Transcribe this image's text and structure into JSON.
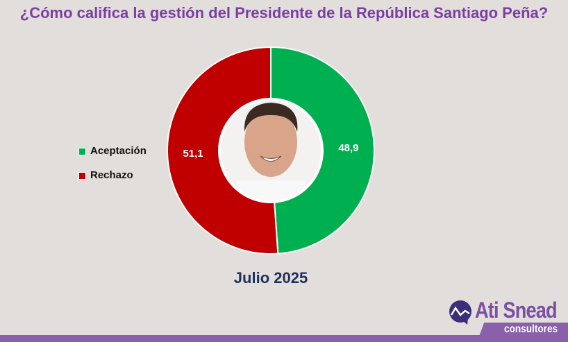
{
  "title": "¿Cómo califica la gestión del Presidente de la República Santiago Peña?",
  "subtitle": "Julio 2025",
  "chart_data": {
    "type": "pie",
    "donut": true,
    "categories": [
      "Aceptación",
      "Rechazo"
    ],
    "values": [
      48.9,
      51.1
    ],
    "data_labels": [
      "48,9",
      "51,1"
    ],
    "colors": [
      "#00b050",
      "#c00000"
    ],
    "legend_position": "left"
  },
  "logo": {
    "name": "Ati Snead",
    "sub": "consultores",
    "color": "#7b4fa3"
  }
}
